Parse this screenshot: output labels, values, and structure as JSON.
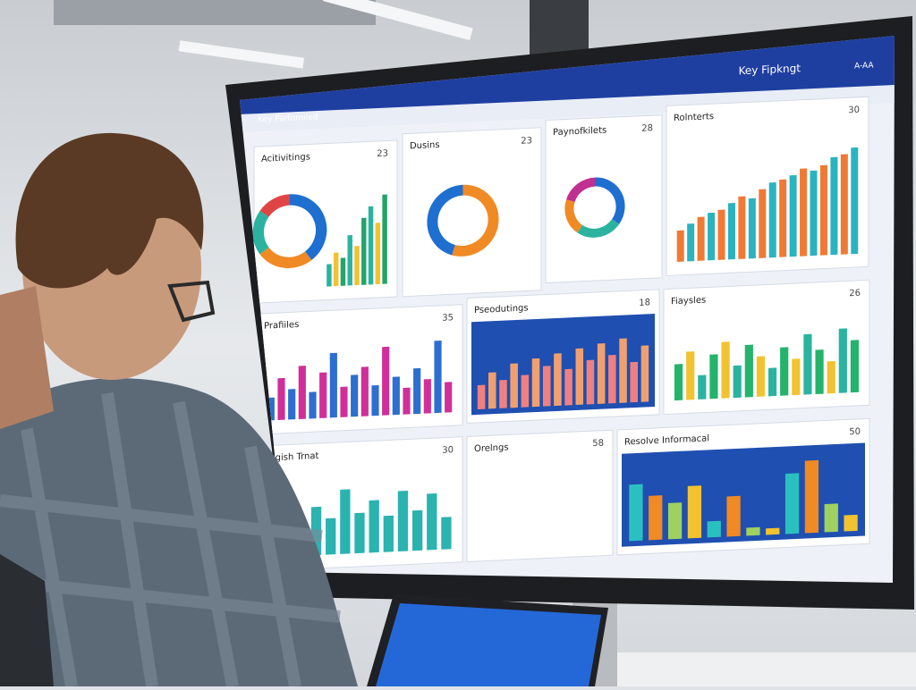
{
  "screen": {
    "header_left": "Key Parforniled",
    "header_right": "Key Fipkngt",
    "header_code": "A-AA",
    "ylim": [
      0,
      100
    ],
    "panels": [
      {
        "title": "Acitivitings",
        "number": 23,
        "donut": [
          40,
          25,
          20,
          15
        ],
        "donut_colors": [
          "#1e6fd0",
          "#f08a24",
          "#2bb3a0",
          "#e04545"
        ],
        "bars": [
          20,
          30,
          25,
          45,
          35,
          60,
          70,
          55,
          80
        ],
        "colors": [
          "#2bb3a0",
          "#f2c230",
          "#24a36b"
        ]
      },
      {
        "title": "Dusins",
        "number": 23,
        "donut": [
          55,
          45
        ],
        "donut_colors": [
          "#f08a24",
          "#1e6fd0"
        ],
        "bars": [],
        "colors": []
      },
      {
        "title": "Paynofkilets",
        "number": 28,
        "donut": [
          35,
          25,
          20,
          20
        ],
        "donut_colors": [
          "#1e6fd0",
          "#2bb3a0",
          "#f08a24",
          "#c03090"
        ],
        "bars": [],
        "colors": []
      },
      {
        "title": "Rolnterts",
        "number": 30,
        "donut": [],
        "donut_colors": [],
        "bars": [
          25,
          30,
          35,
          38,
          40,
          45,
          50,
          48,
          55,
          60,
          62,
          65,
          70,
          68,
          72,
          78,
          80,
          85
        ],
        "colors": [
          "#f07a35",
          "#2bb3c0"
        ]
      },
      {
        "title": "Prafiiles",
        "number": 35,
        "donut": [],
        "donut_colors": [],
        "bars": [
          30,
          55,
          40,
          70,
          35,
          60,
          85,
          40,
          55,
          65,
          40,
          90,
          50,
          35,
          60,
          45,
          95,
          40
        ],
        "colors": [
          "#2c6fd0",
          "#d02f9a"
        ]
      },
      {
        "title": "Pseodutings",
        "number": 18,
        "donut": [],
        "donut_colors": [],
        "bars": [
          30,
          45,
          35,
          55,
          40,
          60,
          50,
          65,
          45,
          70,
          55,
          75,
          60,
          80,
          50,
          70
        ],
        "colors": [
          "#f08080",
          "#f0a070"
        ]
      },
      {
        "title": "Fiaysles",
        "number": 26,
        "donut": [],
        "donut_colors": [],
        "bars": [
          45,
          60,
          30,
          55,
          70,
          40,
          65,
          50,
          35,
          60,
          45,
          75,
          55,
          40,
          80,
          65
        ],
        "colors": [
          "#24b36b",
          "#f2c230",
          "#2bb3a0"
        ]
      },
      {
        "title": "Engish Trnat",
        "number": 30,
        "donut": [],
        "donut_colors": [],
        "bars": [
          25,
          55,
          40,
          60,
          45,
          80,
          50,
          65,
          45,
          75,
          50,
          70,
          40
        ],
        "colors": [
          "#2bb3b0"
        ]
      },
      {
        "title": "Orelngs",
        "number": 58,
        "donut": [],
        "donut_colors": [],
        "bars": [],
        "colors": []
      },
      {
        "title": "Resolve Informacal",
        "number": 50,
        "donut": [],
        "donut_colors": [],
        "bars": [
          70,
          55,
          45,
          65,
          20,
          50,
          10,
          8,
          75,
          90,
          35,
          20
        ],
        "colors": [
          "#2bc0c0",
          "#f08a24",
          "#a0d060",
          "#f2c230"
        ]
      }
    ]
  }
}
